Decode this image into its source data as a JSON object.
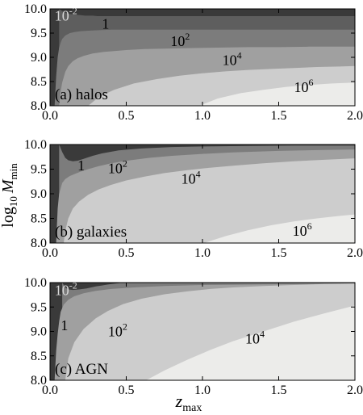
{
  "chart_data": [
    {
      "type": "heatmap",
      "panel_label": "(a) halos",
      "xlim": [
        0.0,
        2.0
      ],
      "ylim": [
        8.0,
        10.0
      ],
      "x_ticks": [
        "0.0",
        "0.5",
        "1.0",
        "1.5",
        "2.0"
      ],
      "y_ticks": [
        "8.0",
        "8.5",
        "9.0",
        "9.5",
        "10.0"
      ],
      "contour_levels": [
        {
          "base": "10",
          "exp": "-2",
          "at": [
            0.02,
            9.86
          ]
        },
        {
          "base": "1",
          "exp": "",
          "at": [
            0.33,
            9.69
          ]
        },
        {
          "base": "10",
          "exp": "2",
          "at": [
            0.78,
            9.33
          ]
        },
        {
          "base": "10",
          "exp": "4",
          "at": [
            1.12,
            8.94
          ]
        },
        {
          "base": "10",
          "exp": "6",
          "at": [
            1.59,
            8.38
          ]
        }
      ],
      "boundaries": [
        {
          "x": [
            0.06,
            0.08,
            0.1,
            0.12,
            0.14,
            0.17,
            0.2,
            0.23,
            0.25,
            0.28,
            0.31,
            0.36,
            0.42,
            0.5,
            0.6,
            0.75,
            0.9,
            1.1,
            1.4,
            1.7,
            2.0
          ],
          "y": [
            10.0,
            9.95,
            9.92,
            9.9,
            9.89,
            9.88,
            9.87,
            9.86,
            9.86,
            9.86,
            9.85,
            9.85,
            9.85,
            9.85,
            9.85,
            9.85,
            9.85,
            9.85,
            9.85,
            9.85,
            9.85
          ]
        },
        {
          "x": [
            0.03,
            0.04,
            0.05,
            0.06,
            0.07,
            0.08,
            0.1,
            0.13,
            0.16,
            0.2,
            0.25,
            0.32,
            0.4,
            0.5,
            0.65,
            0.8,
            1.0,
            1.2,
            1.4,
            1.7,
            2.0
          ],
          "y": [
            8.0,
            8.6,
            9.0,
            9.2,
            9.3,
            9.38,
            9.45,
            9.5,
            9.52,
            9.54,
            9.55,
            9.56,
            9.57,
            9.57,
            9.57,
            9.57,
            9.57,
            9.57,
            9.57,
            9.57,
            9.57
          ]
        },
        {
          "x": [
            0.06,
            0.07,
            0.08,
            0.1,
            0.12,
            0.15,
            0.18,
            0.22,
            0.28,
            0.35,
            0.42,
            0.5,
            0.62,
            0.75,
            0.9,
            1.1,
            1.3,
            1.5,
            1.7,
            2.0
          ],
          "y": [
            8.0,
            8.3,
            8.48,
            8.7,
            8.82,
            8.92,
            8.98,
            9.03,
            9.08,
            9.11,
            9.13,
            9.15,
            9.17,
            9.18,
            9.19,
            9.2,
            9.21,
            9.21,
            9.22,
            9.22
          ]
        },
        {
          "x": [
            0.25,
            0.32,
            0.42,
            0.55,
            0.7,
            0.85,
            1.0,
            1.15,
            1.3,
            1.45,
            1.6,
            1.75,
            1.9,
            2.0
          ],
          "y": [
            8.0,
            8.18,
            8.33,
            8.46,
            8.55,
            8.62,
            8.67,
            8.71,
            8.74,
            8.76,
            8.78,
            8.8,
            8.81,
            8.82
          ]
        },
        {
          "x": [
            0.98,
            1.1,
            1.25,
            1.4,
            1.55,
            1.7,
            1.85,
            2.0
          ],
          "y": [
            8.0,
            8.15,
            8.26,
            8.33,
            8.39,
            8.43,
            8.46,
            8.48
          ]
        }
      ]
    },
    {
      "type": "heatmap",
      "panel_label": "(b) galaxies",
      "xlim": [
        0.0,
        2.0
      ],
      "ylim": [
        8.0,
        10.0
      ],
      "x_ticks": [
        "0.0",
        "0.5",
        "1.0",
        "1.5",
        "2.0"
      ],
      "y_ticks": [
        "8.0",
        "8.5",
        "9.0",
        "9.5",
        "10.0"
      ],
      "contour_levels": [
        {
          "base": "1",
          "exp": "",
          "at": [
            0.17,
            9.57
          ]
        },
        {
          "base": "10",
          "exp": "2",
          "at": [
            0.37,
            9.52
          ]
        },
        {
          "base": "10",
          "exp": "4",
          "at": [
            0.85,
            9.3
          ]
        },
        {
          "base": "10",
          "exp": "6",
          "at": [
            1.58,
            8.25
          ]
        }
      ],
      "boundaries": [
        {
          "x": [
            0.06,
            0.08,
            0.1,
            0.12,
            0.15,
            0.18,
            0.22,
            0.28,
            0.34,
            0.45,
            0.6,
            0.8,
            1.0,
            1.3,
            1.6,
            2.0
          ],
          "y": [
            10.0,
            9.85,
            9.73,
            9.68,
            9.66,
            9.67,
            9.71,
            9.77,
            9.82,
            9.88,
            9.92,
            9.95,
            9.96,
            9.97,
            9.98,
            9.98
          ]
        },
        {
          "x": [
            0.04,
            0.05,
            0.06,
            0.08,
            0.1,
            0.13,
            0.16,
            0.2,
            0.25,
            0.32,
            0.4,
            0.5,
            0.65,
            0.8,
            1.0,
            1.2,
            1.5,
            1.8,
            2.0
          ],
          "y": [
            8.0,
            8.7,
            9.0,
            9.22,
            9.3,
            9.36,
            9.4,
            9.45,
            9.5,
            9.56,
            9.62,
            9.67,
            9.73,
            9.77,
            9.81,
            9.84,
            9.87,
            9.89,
            9.9
          ]
        },
        {
          "x": [
            0.09,
            0.1,
            0.12,
            0.15,
            0.19,
            0.25,
            0.32,
            0.4,
            0.5,
            0.62,
            0.75,
            0.9,
            1.05,
            1.2,
            1.4,
            1.6,
            1.8,
            2.0
          ],
          "y": [
            8.0,
            8.25,
            8.5,
            8.7,
            8.84,
            8.98,
            9.09,
            9.18,
            9.27,
            9.35,
            9.42,
            9.48,
            9.53,
            9.57,
            9.62,
            9.66,
            9.69,
            9.72
          ]
        },
        {
          "x": [
            1.01,
            1.15,
            1.3,
            1.45,
            1.6,
            1.75,
            1.9,
            2.0
          ],
          "y": [
            8.0,
            8.14,
            8.26,
            8.36,
            8.44,
            8.5,
            8.55,
            8.58
          ]
        }
      ]
    },
    {
      "type": "heatmap",
      "panel_label": "(c) AGN",
      "xlim": [
        0.0,
        2.0
      ],
      "ylim": [
        8.0,
        10.0
      ],
      "x_ticks": [
        "0.0",
        "0.5",
        "1.0",
        "1.5",
        "2.0"
      ],
      "y_ticks": [
        "8.0",
        "8.5",
        "9.0",
        "9.5",
        "10.0"
      ],
      "contour_levels": [
        {
          "base": "10",
          "exp": "-2",
          "at": [
            0.02,
            9.84
          ]
        },
        {
          "base": "1",
          "exp": "",
          "at": [
            0.06,
            9.12
          ]
        },
        {
          "base": "10",
          "exp": "2",
          "at": [
            0.37,
            9.0
          ]
        },
        {
          "base": "10",
          "exp": "4",
          "at": [
            1.27,
            8.85
          ]
        }
      ],
      "boundaries": [
        {
          "x": [
            0.08,
            0.09,
            0.1,
            0.12,
            0.15,
            0.19,
            0.24,
            0.3,
            0.38,
            0.48
          ],
          "y": [
            10.0,
            9.95,
            9.9,
            9.86,
            9.85,
            9.86,
            9.88,
            9.92,
            9.96,
            10.0
          ]
        },
        {
          "x": [
            0.03,
            0.04,
            0.05,
            0.06,
            0.07,
            0.09,
            0.12,
            0.16,
            0.22,
            0.3,
            0.4,
            0.55,
            0.75,
            1.0,
            1.35,
            1.7,
            2.0
          ],
          "y": [
            8.0,
            8.6,
            8.95,
            9.2,
            9.4,
            9.55,
            9.65,
            9.72,
            9.78,
            9.83,
            9.87,
            9.9,
            9.93,
            9.95,
            9.96,
            9.97,
            9.98
          ]
        },
        {
          "x": [
            0.1,
            0.12,
            0.16,
            0.22,
            0.3,
            0.38,
            0.48,
            0.6,
            0.75,
            0.9,
            1.05,
            1.2,
            1.4,
            1.6,
            1.8,
            2.0
          ],
          "y": [
            8.0,
            8.45,
            8.78,
            9.05,
            9.27,
            9.42,
            9.56,
            9.67,
            9.76,
            9.82,
            9.87,
            9.9,
            9.93,
            9.95,
            9.97,
            9.98
          ]
        },
        {
          "x": [
            0.63,
            0.75,
            0.9,
            1.05,
            1.2,
            1.4,
            1.6,
            1.8,
            2.0
          ],
          "y": [
            8.0,
            8.2,
            8.42,
            8.62,
            8.8,
            9.0,
            9.2,
            9.37,
            9.53
          ]
        }
      ]
    }
  ],
  "ylabel": {
    "prefix": "log",
    "prefix_sub": "10",
    "var": "M",
    "sub": "min"
  },
  "xlabel": {
    "var": "z",
    "sub": "max"
  },
  "colors": {
    "levels": [
      "#3a3a3a",
      "#5e5e5e",
      "#7c7c7c",
      "#a0a0a0",
      "#cdcdcd",
      "#ececea"
    ],
    "frame": "#000000",
    "light_label": "#d8d8d8"
  }
}
